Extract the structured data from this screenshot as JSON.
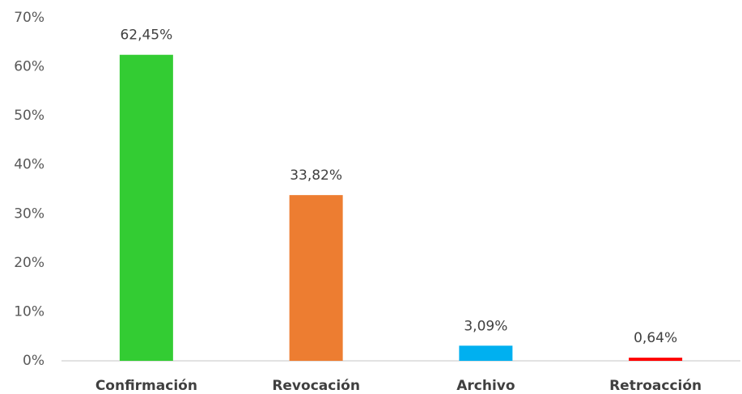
{
  "chart_data": {
    "type": "bar",
    "categories": [
      "Confirmación",
      "Revocación",
      "Archivo",
      "Retroacción"
    ],
    "values": [
      62.45,
      33.82,
      3.09,
      0.64
    ],
    "value_labels": [
      "62,45%",
      "33,82%",
      "3,09%",
      "0,64%"
    ],
    "colors": [
      "#33cc33",
      "#ed7d31",
      "#00b0f0",
      "#ff0000"
    ],
    "ylim": [
      0,
      70
    ],
    "yticks": [
      {
        "value": 0,
        "label": "0%"
      },
      {
        "value": 10,
        "label": "10%"
      },
      {
        "value": 20,
        "label": "20%"
      },
      {
        "value": 30,
        "label": "30%"
      },
      {
        "value": 40,
        "label": "40%"
      },
      {
        "value": 50,
        "label": "50%"
      },
      {
        "value": 60,
        "label": "60%"
      },
      {
        "value": 70,
        "label": "70%"
      }
    ],
    "grid": false
  }
}
